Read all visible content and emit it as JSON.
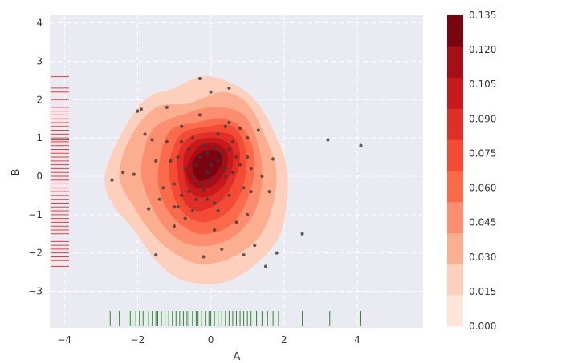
{
  "chart_data": {
    "type": "kde-contour-scatter",
    "xlabel": "A",
    "ylabel": "B",
    "xlim": [
      -4.4,
      5.8
    ],
    "ylim": [
      -3.95,
      4.2
    ],
    "xticks": [
      -4,
      -2,
      0,
      2,
      4
    ],
    "yticks": [
      -3,
      -2,
      -1,
      0,
      1,
      2,
      3,
      4
    ],
    "grid": true,
    "colormap": "Reds",
    "colorbar": {
      "ticks": [
        "0.000",
        "0.015",
        "0.030",
        "0.045",
        "0.060",
        "0.075",
        "0.090",
        "0.105",
        "0.120",
        "0.135"
      ],
      "levels": [
        0.0,
        0.015,
        0.03,
        0.045,
        0.06,
        0.075,
        0.09,
        0.105,
        0.12,
        0.135
      ],
      "colors": [
        "#fee5d9",
        "#fdd0bd",
        "#fcae91",
        "#fc8d6f",
        "#fb6a4a",
        "#f34b35",
        "#e02f26",
        "#c8191d",
        "#a50f15",
        "#7a0510"
      ]
    },
    "density_contours": [
      {
        "level": 0.0,
        "points": [
          [
            -2.9,
            0.0
          ],
          [
            -2.5,
            1.0
          ],
          [
            -1.8,
            2.0
          ],
          [
            -1.0,
            2.3
          ],
          [
            -0.3,
            2.6
          ],
          [
            0.4,
            2.5
          ],
          [
            1.2,
            2.0
          ],
          [
            1.8,
            1.0
          ],
          [
            2.1,
            0.0
          ],
          [
            1.9,
            -1.5
          ],
          [
            1.1,
            -2.4
          ],
          [
            0.2,
            -2.8
          ],
          [
            -0.8,
            -2.7
          ],
          [
            -1.5,
            -2.2
          ],
          [
            -2.1,
            -1.4
          ],
          [
            -2.7,
            -0.7
          ]
        ]
      },
      {
        "level": 0.015,
        "points": [
          [
            -2.5,
            0.0
          ],
          [
            -2.2,
            1.0
          ],
          [
            -1.5,
            1.8
          ],
          [
            -0.6,
            1.9
          ],
          [
            0.3,
            2.2
          ],
          [
            1.0,
            1.9
          ],
          [
            1.5,
            1.0
          ],
          [
            1.8,
            0.0
          ],
          [
            1.5,
            -1.3
          ],
          [
            0.8,
            -2.0
          ],
          [
            -0.2,
            -2.3
          ],
          [
            -1.0,
            -2.0
          ],
          [
            -1.6,
            -1.5
          ],
          [
            -2.1,
            -0.8
          ]
        ]
      },
      {
        "level": 0.03,
        "points": [
          [
            -1.9,
            0.2
          ],
          [
            -1.6,
            1.2
          ],
          [
            -0.8,
            1.6
          ],
          [
            0.1,
            1.8
          ],
          [
            0.9,
            1.6
          ],
          [
            1.3,
            0.8
          ],
          [
            1.4,
            -0.2
          ],
          [
            1.1,
            -1.1
          ],
          [
            0.4,
            -1.7
          ],
          [
            -0.5,
            -1.8
          ],
          [
            -1.2,
            -1.4
          ],
          [
            -1.7,
            -0.6
          ]
        ]
      },
      {
        "level": 0.045,
        "points": [
          [
            -1.4,
            0.4
          ],
          [
            -1.1,
            1.2
          ],
          [
            -0.4,
            1.4
          ],
          [
            0.4,
            1.5
          ],
          [
            1.0,
            1.1
          ],
          [
            1.2,
            0.3
          ],
          [
            1.0,
            -0.6
          ],
          [
            0.5,
            -1.3
          ],
          [
            -0.3,
            -1.5
          ],
          [
            -1.0,
            -1.1
          ],
          [
            -1.4,
            -0.4
          ]
        ]
      },
      {
        "level": 0.06,
        "points": [
          [
            -1.1,
            0.5
          ],
          [
            -0.8,
            1.1
          ],
          [
            -0.1,
            1.3
          ],
          [
            0.6,
            1.3
          ],
          [
            0.95,
            0.7
          ],
          [
            0.9,
            -0.2
          ],
          [
            0.5,
            -0.9
          ],
          [
            -0.2,
            -1.2
          ],
          [
            -0.8,
            -0.9
          ],
          [
            -1.1,
            -0.2
          ]
        ]
      },
      {
        "level": 0.075,
        "points": [
          [
            -0.9,
            0.5
          ],
          [
            -0.6,
            1.0
          ],
          [
            0.0,
            1.15
          ],
          [
            0.6,
            1.05
          ],
          [
            0.8,
            0.5
          ],
          [
            0.6,
            -0.2
          ],
          [
            0.2,
            -0.7
          ],
          [
            -0.4,
            -0.9
          ],
          [
            -0.8,
            -0.5
          ]
        ]
      },
      {
        "level": 0.09,
        "points": [
          [
            -0.75,
            0.45
          ],
          [
            -0.45,
            0.9
          ],
          [
            0.1,
            1.0
          ],
          [
            0.55,
            0.8
          ],
          [
            0.6,
            0.3
          ],
          [
            0.35,
            -0.25
          ],
          [
            -0.15,
            -0.55
          ],
          [
            -0.6,
            -0.35
          ]
        ]
      },
      {
        "level": 0.105,
        "points": [
          [
            -0.6,
            0.4
          ],
          [
            -0.3,
            0.8
          ],
          [
            0.15,
            0.85
          ],
          [
            0.45,
            0.6
          ],
          [
            0.4,
            0.15
          ],
          [
            0.05,
            -0.25
          ],
          [
            -0.4,
            -0.3
          ],
          [
            -0.65,
            0.0
          ]
        ]
      },
      {
        "level": 0.12,
        "points": [
          [
            -0.5,
            0.35
          ],
          [
            -0.2,
            0.65
          ],
          [
            0.2,
            0.65
          ],
          [
            0.3,
            0.35
          ],
          [
            0.05,
            0.0
          ],
          [
            -0.35,
            -0.1
          ]
        ]
      }
    ],
    "points_x": [
      -2.7,
      -2.4,
      -2.1,
      -2.0,
      -1.9,
      -1.8,
      -1.7,
      -1.6,
      -1.5,
      -1.5,
      -1.4,
      -1.3,
      -1.2,
      -1.2,
      -1.1,
      -1.0,
      -1.0,
      -0.9,
      -0.9,
      -0.8,
      -0.8,
      -0.7,
      -0.7,
      -0.6,
      -0.6,
      -0.5,
      -0.5,
      -0.5,
      -0.4,
      -0.4,
      -0.3,
      -0.3,
      -0.3,
      -0.2,
      -0.2,
      -0.2,
      -0.1,
      -0.1,
      0.0,
      0.0,
      0.0,
      0.1,
      0.1,
      0.2,
      0.2,
      0.2,
      0.3,
      0.3,
      0.4,
      0.4,
      0.5,
      0.5,
      0.5,
      0.6,
      0.6,
      0.7,
      0.7,
      0.8,
      0.8,
      0.9,
      0.9,
      1.0,
      1.0,
      1.1,
      1.1,
      1.2,
      1.3,
      1.4,
      1.5,
      1.6,
      1.7,
      1.8,
      -0.3,
      0.5,
      -0.8,
      0.1,
      -1.0,
      0.4,
      1.0,
      -0.1,
      2.5,
      3.2,
      4.1
    ],
    "points_y": [
      -0.1,
      0.1,
      0.05,
      1.7,
      1.75,
      1.1,
      -0.85,
      0.95,
      -2.05,
      0.4,
      -0.6,
      -0.3,
      1.8,
      0.9,
      0.4,
      -0.2,
      -1.3,
      0.5,
      -0.8,
      1.3,
      -0.5,
      0.2,
      -1.1,
      0.7,
      -0.4,
      0.0,
      -0.9,
      1.0,
      0.3,
      -0.6,
      2.55,
      0.5,
      -0.2,
      0.8,
      -0.35,
      -2.1,
      0.1,
      0.6,
      2.2,
      0.3,
      -0.1,
      0.75,
      -0.7,
      0.4,
      1.1,
      -0.9,
      0.6,
      -1.9,
      0.2,
      1.3,
      0.7,
      -0.5,
      2.3,
      0.1,
      0.9,
      -1.2,
      0.5,
      0.3,
      1.25,
      -0.3,
      -2.05,
      0.5,
      -1.0,
      0.2,
      -0.4,
      -1.8,
      1.2,
      0.0,
      -2.35,
      -0.4,
      0.45,
      -2.0,
      1.6,
      1.4,
      0.9,
      -1.4,
      -0.8,
      0.0,
      1.0,
      -0.6,
      -1.5,
      0.95,
      0.8
    ],
    "rug_x": [
      -2.75,
      -2.5,
      -2.2,
      -2.15,
      -2.05,
      -1.95,
      -1.85,
      -1.7,
      -1.6,
      -1.5,
      -1.45,
      -1.35,
      -1.25,
      -1.15,
      -1.05,
      -0.95,
      -0.85,
      -0.75,
      -0.65,
      -0.6,
      -0.5,
      -0.4,
      -0.35,
      -0.25,
      -0.15,
      -0.05,
      0.0,
      0.1,
      0.2,
      0.3,
      0.4,
      0.5,
      0.6,
      0.7,
      0.8,
      0.9,
      1.0,
      1.1,
      1.25,
      1.4,
      1.55,
      1.7,
      1.85,
      2.5,
      3.25,
      4.1
    ],
    "rug_y": [
      2.6,
      2.3,
      2.2,
      2.0,
      1.8,
      1.7,
      1.6,
      1.5,
      1.4,
      1.3,
      1.2,
      1.1,
      1.0,
      0.95,
      0.9,
      0.8,
      0.7,
      0.6,
      0.5,
      0.4,
      0.3,
      0.2,
      0.1,
      0.0,
      -0.1,
      -0.2,
      -0.3,
      -0.4,
      -0.5,
      -0.6,
      -0.7,
      -0.8,
      -0.9,
      -1.0,
      -1.1,
      -1.2,
      -1.3,
      -1.4,
      -1.5,
      -1.7,
      -1.8,
      -1.9,
      -2.0,
      -2.1,
      -2.2,
      -2.35
    ]
  }
}
